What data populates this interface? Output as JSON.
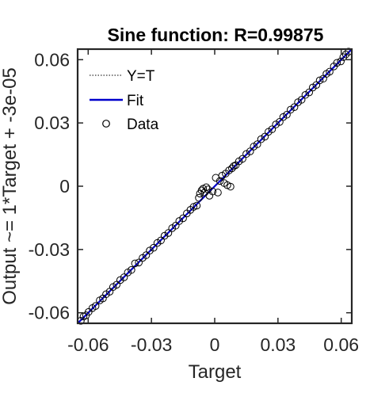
{
  "chart_data": {
    "type": "scatter",
    "title": "Sine function: R=0.99875",
    "xlabel": "Target",
    "ylabel": "Output ~= 1*Target + -3e-05",
    "xlim": [
      -0.065,
      0.065
    ],
    "ylim": [
      -0.065,
      0.065
    ],
    "xticks": [
      -0.06,
      -0.03,
      0,
      0.03,
      0.06
    ],
    "xtick_labels": [
      "-0.06",
      "-0.03",
      "0",
      "0.03",
      "0.06"
    ],
    "yticks": [
      -0.06,
      -0.03,
      0,
      0.03,
      0.06
    ],
    "ytick_labels": [
      "-0.06",
      "-0.03",
      "0",
      "0.03",
      "0.06"
    ],
    "grid": false,
    "legend_position": "top-left",
    "legend": [
      {
        "label": "Y=T",
        "style": "dotted",
        "color": "#000000"
      },
      {
        "label": "Fit",
        "style": "solid",
        "color": "#0000cc"
      },
      {
        "label": "Data",
        "style": "circle",
        "color": "#000000"
      }
    ],
    "series": [
      {
        "name": "Y=T",
        "kind": "line",
        "x": [
          -0.065,
          0.065
        ],
        "y": [
          -0.065,
          0.065
        ]
      },
      {
        "name": "Fit",
        "kind": "line",
        "slope": 1,
        "intercept": -3e-05,
        "x": [
          -0.065,
          0.065
        ]
      },
      {
        "name": "Data",
        "kind": "scatter",
        "points": [
          [
            -0.0635,
            -0.0638
          ],
          [
            -0.0622,
            -0.0618
          ],
          [
            -0.061,
            -0.0612
          ],
          [
            -0.0598,
            -0.0596
          ],
          [
            -0.058,
            -0.0578
          ],
          [
            -0.0565,
            -0.0568
          ],
          [
            -0.0545,
            -0.0541
          ],
          [
            -0.053,
            -0.0532
          ],
          [
            -0.0515,
            -0.0512
          ],
          [
            -0.0498,
            -0.05
          ],
          [
            -0.0482,
            -0.0478
          ],
          [
            -0.0465,
            -0.0467
          ],
          [
            -0.0448,
            -0.0445
          ],
          [
            -0.043,
            -0.0432
          ],
          [
            -0.0412,
            -0.0409
          ],
          [
            -0.0395,
            -0.0397
          ],
          [
            -0.0378,
            -0.0366
          ],
          [
            -0.036,
            -0.0362
          ],
          [
            -0.0342,
            -0.034
          ],
          [
            -0.0325,
            -0.0327
          ],
          [
            -0.0308,
            -0.0305
          ],
          [
            -0.029,
            -0.0292
          ],
          [
            -0.0272,
            -0.0269
          ],
          [
            -0.0255,
            -0.0257
          ],
          [
            -0.0238,
            -0.0235
          ],
          [
            -0.022,
            -0.0222
          ],
          [
            -0.0202,
            -0.0199
          ],
          [
            -0.0185,
            -0.0187
          ],
          [
            -0.0168,
            -0.0165
          ],
          [
            -0.015,
            -0.0152
          ],
          [
            -0.0132,
            -0.0129
          ],
          [
            -0.0115,
            -0.0112
          ],
          [
            -0.01,
            -0.0098
          ],
          [
            -0.0085,
            -0.0092
          ],
          [
            -0.0075,
            -0.0055
          ],
          [
            -0.007,
            -0.0035
          ],
          [
            -0.0062,
            -0.002
          ],
          [
            -0.0055,
            -0.0012
          ],
          [
            -0.0048,
            -0.003
          ],
          [
            -0.004,
            -0.0005
          ],
          [
            -0.0032,
            -0.0015
          ],
          [
            -0.0025,
            -0.0045
          ],
          [
            -0.001,
            -0.0025
          ],
          [
            0.0005,
            0.004
          ],
          [
            0.0015,
            -0.003
          ],
          [
            0.0025,
            0.0025
          ],
          [
            0.0035,
            0.005
          ],
          [
            0.0045,
            0.0015
          ],
          [
            0.0052,
            0.006
          ],
          [
            0.006,
            0.0005
          ],
          [
            0.0068,
            0.0075
          ],
          [
            0.0075,
            -0.0002
          ],
          [
            0.0082,
            0.0085
          ],
          [
            0.009,
            0.0095
          ],
          [
            0.01,
            0.01
          ],
          [
            0.0115,
            0.0118
          ],
          [
            0.0132,
            0.013
          ],
          [
            0.015,
            0.0153
          ],
          [
            0.0168,
            0.0165
          ],
          [
            0.0185,
            0.0188
          ],
          [
            0.0202,
            0.0199
          ],
          [
            0.022,
            0.0223
          ],
          [
            0.0238,
            0.0235
          ],
          [
            0.0255,
            0.0258
          ],
          [
            0.0272,
            0.027
          ],
          [
            0.029,
            0.0293
          ],
          [
            0.0308,
            0.0305
          ],
          [
            0.0325,
            0.0328
          ],
          [
            0.0342,
            0.0339
          ],
          [
            0.036,
            0.0363
          ],
          [
            0.0378,
            0.0375
          ],
          [
            0.0395,
            0.0398
          ],
          [
            0.0412,
            0.041
          ],
          [
            0.043,
            0.0433
          ],
          [
            0.0448,
            0.0445
          ],
          [
            0.0465,
            0.0468
          ],
          [
            0.0482,
            0.048
          ],
          [
            0.0498,
            0.0502
          ],
          [
            0.0515,
            0.051
          ],
          [
            0.053,
            0.0533
          ],
          [
            0.0545,
            0.0543
          ],
          [
            0.0565,
            0.0568
          ],
          [
            0.058,
            0.0585
          ],
          [
            0.0598,
            0.0592
          ],
          [
            0.061,
            0.0612
          ],
          [
            0.0622,
            0.0625
          ],
          [
            0.0635,
            0.0638
          ]
        ]
      }
    ]
  }
}
